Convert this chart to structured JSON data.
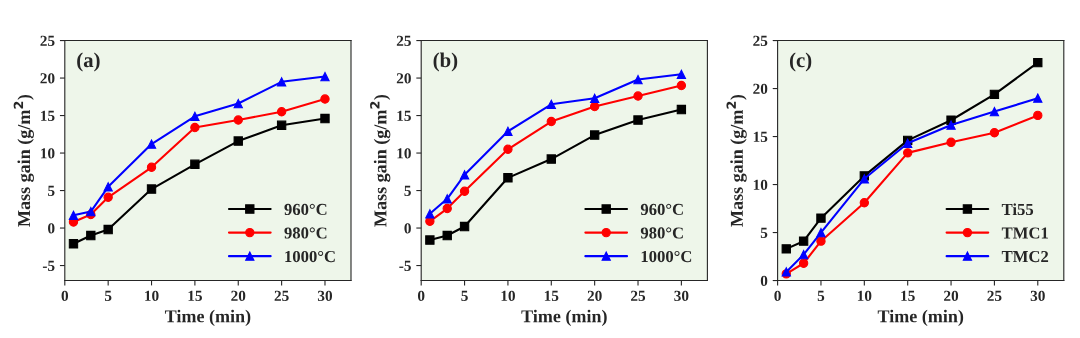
{
  "chart_data": [
    {
      "type": "line",
      "annotations": [
        "(a)"
      ],
      "xlabel": "Time (min)",
      "ylabel": "Mass gain (g/m$^{2}$)",
      "x": [
        1,
        3,
        5,
        10,
        15,
        20,
        25,
        30
      ],
      "xlim": [
        0,
        33
      ],
      "xticks": [
        0,
        5,
        10,
        15,
        20,
        25,
        30
      ],
      "ylim": [
        -7,
        25
      ],
      "yticks": [
        -5,
        0,
        5,
        10,
        15,
        20,
        25
      ],
      "legend": "bottom right",
      "grid": false,
      "line_style": "solid",
      "series": [
        {
          "name": "960°C",
          "color": "#000000",
          "marker": "square",
          "values": [
            -2.1,
            -1.0,
            -0.2,
            5.2,
            8.5,
            11.6,
            13.7,
            14.6
          ]
        },
        {
          "name": "980°C",
          "color": "#ff0000",
          "marker": "circle",
          "values": [
            0.8,
            1.8,
            4.1,
            8.1,
            13.4,
            14.4,
            15.5,
            17.2
          ]
        },
        {
          "name": "1000°C",
          "color": "#0000ff",
          "marker": "triangle",
          "values": [
            1.7,
            2.2,
            5.5,
            11.2,
            14.9,
            16.6,
            19.5,
            20.2
          ]
        }
      ]
    },
    {
      "type": "line",
      "annotations": [
        "(b)"
      ],
      "xlabel": "Time (min)",
      "ylabel": "Mass gain (g/m$^{2}$)",
      "x": [
        1,
        3,
        5,
        10,
        15,
        20,
        25,
        30
      ],
      "xlim": [
        0,
        33
      ],
      "xticks": [
        0,
        5,
        10,
        15,
        20,
        25,
        30
      ],
      "ylim": [
        -7,
        25
      ],
      "yticks": [
        -5,
        0,
        5,
        10,
        15,
        20,
        25
      ],
      "legend": "bottom right",
      "grid": false,
      "line_style": "solid",
      "series": [
        {
          "name": "960°C",
          "color": "#000000",
          "marker": "square",
          "values": [
            -1.6,
            -1.0,
            0.2,
            6.7,
            9.2,
            12.4,
            14.4,
            15.8
          ]
        },
        {
          "name": "980°C",
          "color": "#ff0000",
          "marker": "circle",
          "values": [
            0.9,
            2.6,
            4.9,
            10.5,
            14.2,
            16.2,
            17.6,
            19.0
          ]
        },
        {
          "name": "1000°C",
          "color": "#0000ff",
          "marker": "triangle",
          "values": [
            1.9,
            3.9,
            7.1,
            12.9,
            16.5,
            17.3,
            19.8,
            20.5
          ]
        }
      ]
    },
    {
      "type": "line",
      "annotations": [
        "(c)"
      ],
      "xlabel": "Time (min)",
      "ylabel": "Mass gain (g/m$^{2}$)",
      "x": [
        1,
        3,
        5,
        10,
        15,
        20,
        25,
        30
      ],
      "xlim": [
        0,
        33
      ],
      "xticks": [
        0,
        5,
        10,
        15,
        20,
        25,
        30
      ],
      "ylim": [
        0,
        25
      ],
      "yticks": [
        0,
        5,
        10,
        15,
        20,
        25
      ],
      "legend": "bottom right",
      "grid": false,
      "line_style": "solid",
      "series": [
        {
          "name": "Ti55",
          "color": "#000000",
          "marker": "square",
          "values": [
            3.3,
            4.1,
            6.5,
            10.9,
            14.6,
            16.7,
            19.4,
            22.7
          ]
        },
        {
          "name": "TMC1",
          "color": "#ff0000",
          "marker": "circle",
          "values": [
            0.7,
            1.8,
            4.1,
            8.1,
            13.3,
            14.4,
            15.4,
            17.2
          ]
        },
        {
          "name": "TMC2",
          "color": "#0000ff",
          "marker": "triangle",
          "values": [
            0.9,
            2.7,
            5.0,
            10.6,
            14.3,
            16.2,
            17.6,
            19.0
          ]
        }
      ]
    }
  ]
}
